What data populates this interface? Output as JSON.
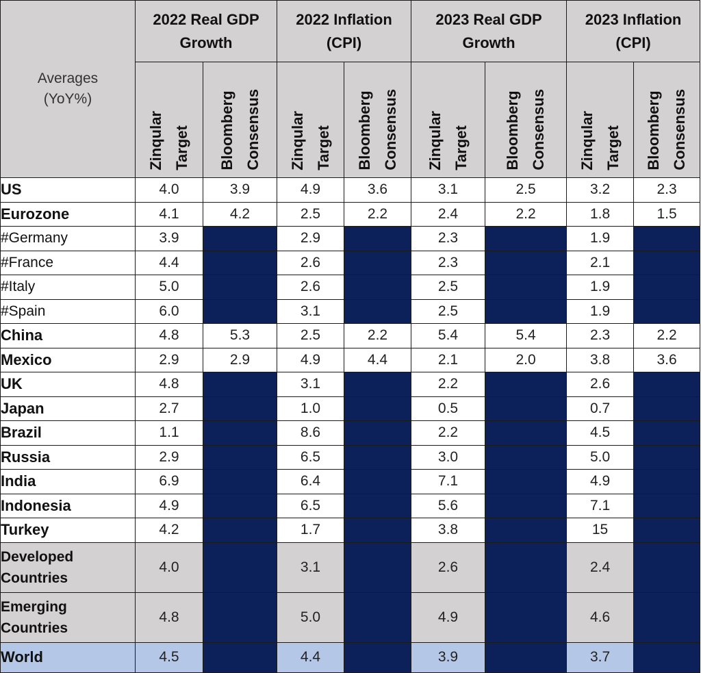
{
  "table": {
    "corner_label": "Averages\n(YoY%)",
    "groups": [
      {
        "label": "2022 Real GDP Growth"
      },
      {
        "label": "2022 Inflation (CPI)"
      },
      {
        "label": "2023 Real GDP Growth"
      },
      {
        "label": "2023 Inflation (CPI)"
      }
    ],
    "sub_headers": [
      "Zinqular\nTarget",
      "Bloomberg\nConsensus"
    ],
    "colors": {
      "header_bg": "#d3d1d1",
      "blank_cell": "#0c2159",
      "world_bg": "#b4c7e7",
      "aggregate_bg": "#d3d1d1"
    },
    "rows": [
      {
        "label": "US",
        "bold": true,
        "style": "white",
        "values": [
          "4.0",
          "3.9",
          "4.9",
          "3.6",
          "3.1",
          "2.5",
          "3.2",
          "2.3"
        ]
      },
      {
        "label": "Eurozone",
        "bold": true,
        "style": "white",
        "values": [
          "4.1",
          "4.2",
          "2.5",
          "2.2",
          "2.4",
          "2.2",
          "1.8",
          "1.5"
        ]
      },
      {
        "label": "#Germany",
        "bold": false,
        "style": "white",
        "values": [
          "3.9",
          null,
          "2.9",
          null,
          "2.3",
          null,
          "1.9",
          null
        ]
      },
      {
        "label": "#France",
        "bold": false,
        "style": "white",
        "values": [
          "4.4",
          null,
          "2.6",
          null,
          "2.3",
          null,
          "2.1",
          null
        ]
      },
      {
        "label": "#Italy",
        "bold": false,
        "style": "white",
        "values": [
          "5.0",
          null,
          "2.6",
          null,
          "2.5",
          null,
          "1.9",
          null
        ]
      },
      {
        "label": "#Spain",
        "bold": false,
        "style": "white",
        "values": [
          "6.0",
          null,
          "3.1",
          null,
          "2.5",
          null,
          "1.9",
          null
        ]
      },
      {
        "label": "China",
        "bold": true,
        "style": "white",
        "values": [
          "4.8",
          "5.3",
          "2.5",
          "2.2",
          "5.4",
          "5.4",
          "2.3",
          "2.2"
        ]
      },
      {
        "label": "Mexico",
        "bold": true,
        "style": "white",
        "values": [
          "2.9",
          "2.9",
          "4.9",
          "4.4",
          "2.1",
          "2.0",
          "3.8",
          "3.6"
        ]
      },
      {
        "label": "UK",
        "bold": true,
        "style": "white",
        "values": [
          "4.8",
          null,
          "3.1",
          null,
          "2.2",
          null,
          "2.6",
          null
        ]
      },
      {
        "label": "Japan",
        "bold": true,
        "style": "white",
        "values": [
          "2.7",
          null,
          "1.0",
          null,
          "0.5",
          null,
          "0.7",
          null
        ]
      },
      {
        "label": "Brazil",
        "bold": true,
        "style": "white",
        "values": [
          "1.1",
          null,
          "8.6",
          null,
          "2.2",
          null,
          "4.5",
          null
        ]
      },
      {
        "label": "Russia",
        "bold": true,
        "style": "white",
        "values": [
          "2.9",
          null,
          "6.5",
          null,
          "3.0",
          null,
          "5.0",
          null
        ]
      },
      {
        "label": "India",
        "bold": true,
        "style": "white",
        "values": [
          "6.9",
          null,
          "6.4",
          null,
          "7.1",
          null,
          "4.9",
          null
        ]
      },
      {
        "label": "Indonesia",
        "bold": true,
        "style": "white",
        "values": [
          "4.9",
          null,
          "6.5",
          null,
          "5.6",
          null,
          "7.1",
          null
        ]
      },
      {
        "label": "Turkey",
        "bold": true,
        "style": "white",
        "values": [
          "4.2",
          null,
          "1.7",
          null,
          "3.8",
          null,
          "15",
          null
        ]
      },
      {
        "label": "Developed Countries",
        "bold": true,
        "style": "gray",
        "values": [
          "4.0",
          null,
          "3.1",
          null,
          "2.6",
          null,
          "2.4",
          null
        ]
      },
      {
        "label": "Emerging Countries",
        "bold": true,
        "style": "gray",
        "values": [
          "4.8",
          null,
          "5.0",
          null,
          "4.9",
          null,
          "4.6",
          null
        ]
      },
      {
        "label": "World",
        "bold": true,
        "style": "blue",
        "values": [
          "4.5",
          null,
          "4.4",
          null,
          "3.9",
          null,
          "3.7",
          null
        ]
      }
    ]
  }
}
